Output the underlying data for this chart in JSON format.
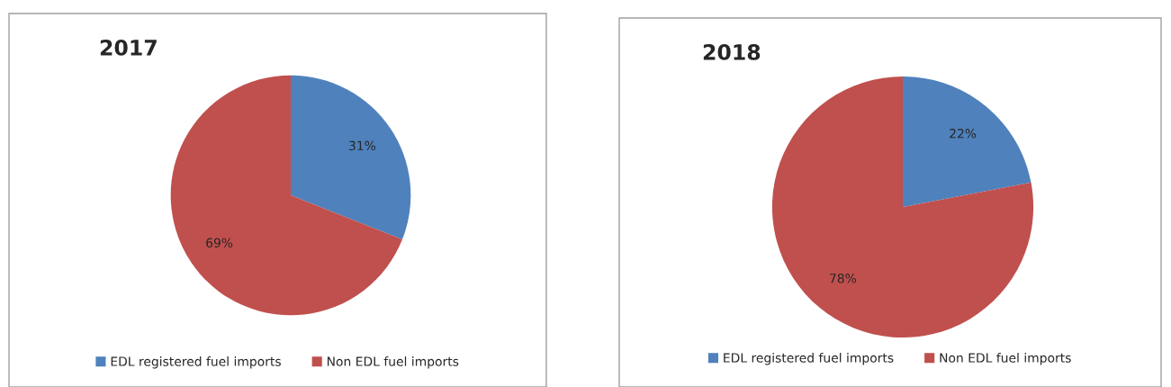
{
  "chart_data": [
    {
      "type": "pie",
      "title": "2017",
      "categories": [
        "EDL registered fuel imports",
        "Non EDL fuel imports"
      ],
      "values": [
        31,
        69
      ],
      "colors": [
        "#4f81bd",
        "#c0504d"
      ],
      "value_labels": [
        "31%",
        "69%"
      ],
      "legend": "bottom"
    },
    {
      "type": "pie",
      "title": "2018",
      "categories": [
        "EDL registered fuel imports",
        "Non EDL fuel imports"
      ],
      "values": [
        22,
        78
      ],
      "colors": [
        "#4f81bd",
        "#c0504d"
      ],
      "value_labels": [
        "22%",
        "78%"
      ],
      "legend": "bottom"
    }
  ]
}
